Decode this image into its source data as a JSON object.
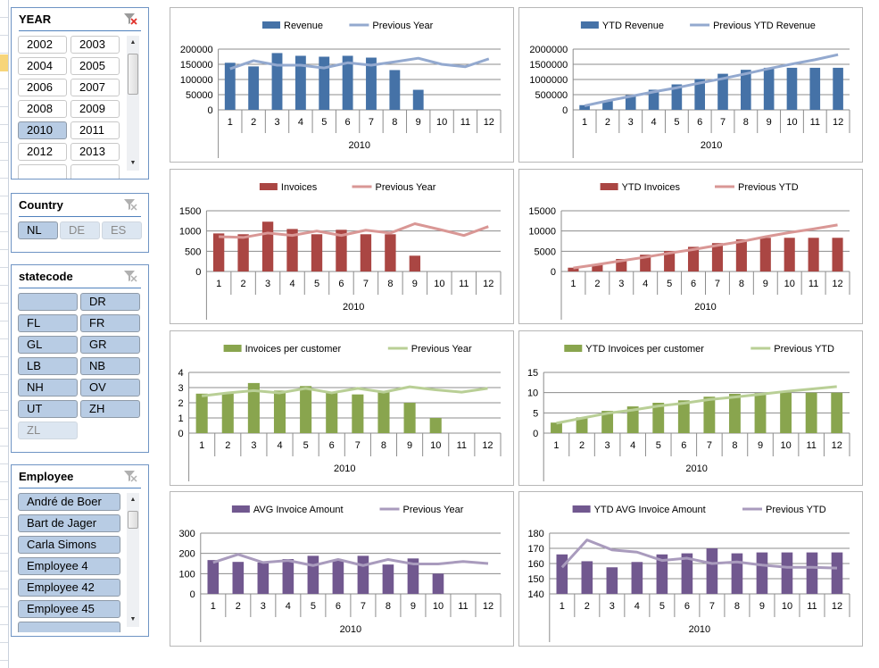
{
  "slicers": {
    "year": {
      "title": "YEAR",
      "items": [
        "2002",
        "2003",
        "2004",
        "2005",
        "2006",
        "2007",
        "2008",
        "2009",
        "2010",
        "2011",
        "2012",
        "2013"
      ],
      "selected": "2010",
      "filter_icon": "clear-filter-icon-active"
    },
    "country": {
      "title": "Country",
      "items": [
        "NL",
        "DE",
        "ES"
      ],
      "selected": "NL",
      "dimmed": [
        "DE",
        "ES"
      ]
    },
    "statecode": {
      "title": "statecode",
      "items": [
        "",
        "DR",
        "FL",
        "FR",
        "GL",
        "GR",
        "LB",
        "NB",
        "NH",
        "OV",
        "UT",
        "ZH",
        "ZL"
      ],
      "dimmed": [
        "ZL"
      ]
    },
    "employee": {
      "title": "Employee",
      "items": [
        "André de Boer",
        "Bart de Jager",
        "Carla Simons",
        "Employee 4",
        "Employee 42",
        "Employee 45"
      ]
    }
  },
  "chart_data": [
    {
      "type": "bar+line",
      "categories": [
        "1",
        "2",
        "3",
        "4",
        "5",
        "6",
        "7",
        "8",
        "9",
        "10",
        "11",
        "12"
      ],
      "group_label": "2010",
      "ylim": [
        0,
        200000
      ],
      "yticks": [
        0,
        50000,
        100000,
        150000,
        200000
      ],
      "series": [
        {
          "name": "Revenue",
          "kind": "bar",
          "color": "#4572A7",
          "values": [
            155000,
            143000,
            187000,
            178000,
            175000,
            178000,
            172000,
            131000,
            66000,
            null,
            null,
            null
          ]
        },
        {
          "name": "Previous Year",
          "kind": "line",
          "color": "#93A9CF",
          "values": [
            135000,
            162000,
            147000,
            147000,
            138000,
            155000,
            147000,
            158000,
            170000,
            150000,
            142000,
            168000
          ]
        }
      ]
    },
    {
      "type": "bar+line",
      "categories": [
        "1",
        "2",
        "3",
        "4",
        "5",
        "6",
        "7",
        "8",
        "9",
        "10",
        "11",
        "12"
      ],
      "group_label": "2010",
      "ylim": [
        0,
        2000000
      ],
      "yticks": [
        0,
        500000,
        1000000,
        1500000,
        2000000
      ],
      "series": [
        {
          "name": "YTD Revenue",
          "kind": "bar",
          "color": "#4572A7",
          "values": [
            155000,
            298000,
            485000,
            663000,
            838000,
            1016000,
            1188000,
            1319000,
            1385000,
            1385000,
            1385000,
            1385000
          ]
        },
        {
          "name": "Previous YTD Revenue",
          "kind": "line",
          "color": "#93A9CF",
          "values": [
            135000,
            297000,
            444000,
            591000,
            729000,
            884000,
            1031000,
            1189000,
            1359000,
            1509000,
            1651000,
            1819000
          ]
        }
      ]
    },
    {
      "type": "bar+line",
      "categories": [
        "1",
        "2",
        "3",
        "4",
        "5",
        "6",
        "7",
        "8",
        "9",
        "10",
        "11",
        "12"
      ],
      "group_label": "2010",
      "ylim": [
        0,
        1500
      ],
      "yticks": [
        0,
        500,
        1000,
        1500
      ],
      "series": [
        {
          "name": "Invoices",
          "kind": "bar",
          "color": "#AA4643",
          "values": [
            940,
            920,
            1230,
            1050,
            920,
            1030,
            920,
            920,
            390,
            null,
            null,
            null
          ]
        },
        {
          "name": "Previous Year",
          "kind": "line",
          "color": "#D99795",
          "values": [
            860,
            840,
            950,
            890,
            1000,
            890,
            1020,
            950,
            1180,
            1040,
            890,
            1110
          ]
        }
      ]
    },
    {
      "type": "bar+line",
      "categories": [
        "1",
        "2",
        "3",
        "4",
        "5",
        "6",
        "7",
        "8",
        "9",
        "10",
        "11",
        "12"
      ],
      "group_label": "2010",
      "ylim": [
        0,
        15000
      ],
      "yticks": [
        0,
        5000,
        10000,
        15000
      ],
      "series": [
        {
          "name": "YTD Invoices",
          "kind": "bar",
          "color": "#AA4643",
          "values": [
            940,
            1860,
            3090,
            4140,
            5060,
            6090,
            7010,
            7930,
            8320,
            8320,
            8320,
            8320
          ]
        },
        {
          "name": "Previous YTD",
          "kind": "line",
          "color": "#D99795",
          "values": [
            860,
            1700,
            2650,
            3540,
            4540,
            5430,
            6450,
            7400,
            8580,
            9620,
            10510,
            11500
          ]
        }
      ]
    },
    {
      "type": "bar+line",
      "categories": [
        "1",
        "2",
        "3",
        "4",
        "5",
        "6",
        "7",
        "8",
        "9",
        "10",
        "11",
        "12"
      ],
      "group_label": "2010",
      "ylim": [
        0,
        4
      ],
      "yticks": [
        0,
        1,
        2,
        3,
        4
      ],
      "series": [
        {
          "name": "Invoices per customer",
          "kind": "bar",
          "color": "#89A54E",
          "values": [
            2.6,
            2.6,
            3.3,
            2.8,
            3.1,
            2.7,
            2.55,
            2.75,
            2.0,
            1.0,
            null,
            null
          ]
        },
        {
          "name": "Previous Year",
          "kind": "line",
          "color": "#B9CF96",
          "values": [
            2.45,
            2.65,
            2.8,
            2.65,
            2.95,
            2.65,
            2.95,
            2.7,
            3.05,
            2.85,
            2.7,
            2.95
          ]
        }
      ]
    },
    {
      "type": "bar+line",
      "categories": [
        "1",
        "2",
        "3",
        "4",
        "5",
        "6",
        "7",
        "8",
        "9",
        "10",
        "11",
        "12"
      ],
      "group_label": "2010",
      "ylim": [
        0,
        15
      ],
      "yticks": [
        0,
        5,
        10,
        15
      ],
      "series": [
        {
          "name": "YTD Invoices per customer",
          "kind": "bar",
          "color": "#89A54E",
          "values": [
            2.6,
            3.9,
            5.5,
            6.6,
            7.5,
            8.1,
            9.0,
            9.7,
            9.9,
            10,
            10,
            10
          ]
        },
        {
          "name": "Previous YTD",
          "kind": "line",
          "color": "#B9CF96",
          "values": [
            2.45,
            3.7,
            4.9,
            5.7,
            6.7,
            7.4,
            8.3,
            8.9,
            9.6,
            10.3,
            10.9,
            11.5
          ]
        }
      ]
    },
    {
      "type": "bar+line",
      "categories": [
        "1",
        "2",
        "3",
        "4",
        "5",
        "6",
        "7",
        "8",
        "9",
        "10",
        "11",
        "12"
      ],
      "group_label": "2010",
      "ylim": [
        0,
        300
      ],
      "yticks": [
        0,
        100,
        200,
        300
      ],
      "series": [
        {
          "name": "AVG Invoice Amount",
          "kind": "bar",
          "color": "#71588F",
          "values": [
            167,
            158,
            155,
            172,
            188,
            165,
            188,
            145,
            175,
            100,
            null,
            null
          ]
        },
        {
          "name": "Previous Year",
          "kind": "line",
          "color": "#A99BBD",
          "values": [
            155,
            195,
            155,
            165,
            140,
            170,
            140,
            170,
            148,
            148,
            160,
            150
          ]
        }
      ]
    },
    {
      "type": "bar+line",
      "categories": [
        "1",
        "2",
        "3",
        "4",
        "5",
        "6",
        "7",
        "8",
        "9",
        "10",
        "11",
        "12"
      ],
      "group_label": "2010",
      "ylim": [
        140,
        180
      ],
      "yticks": [
        140,
        150,
        160,
        170,
        180
      ],
      "series": [
        {
          "name": "YTD AVG Invoice Amount",
          "kind": "bar",
          "color": "#71588F",
          "values": [
            166,
            161.5,
            157.5,
            161,
            166,
            166.7,
            170,
            166.7,
            167.3,
            167.3,
            167.3,
            167.3
          ]
        },
        {
          "name": "Previous YTD",
          "kind": "line",
          "color": "#A99BBD",
          "values": [
            157.5,
            175.5,
            169,
            167.5,
            162,
            163.5,
            160,
            161,
            159,
            157.5,
            157.5,
            157
          ]
        }
      ]
    }
  ]
}
